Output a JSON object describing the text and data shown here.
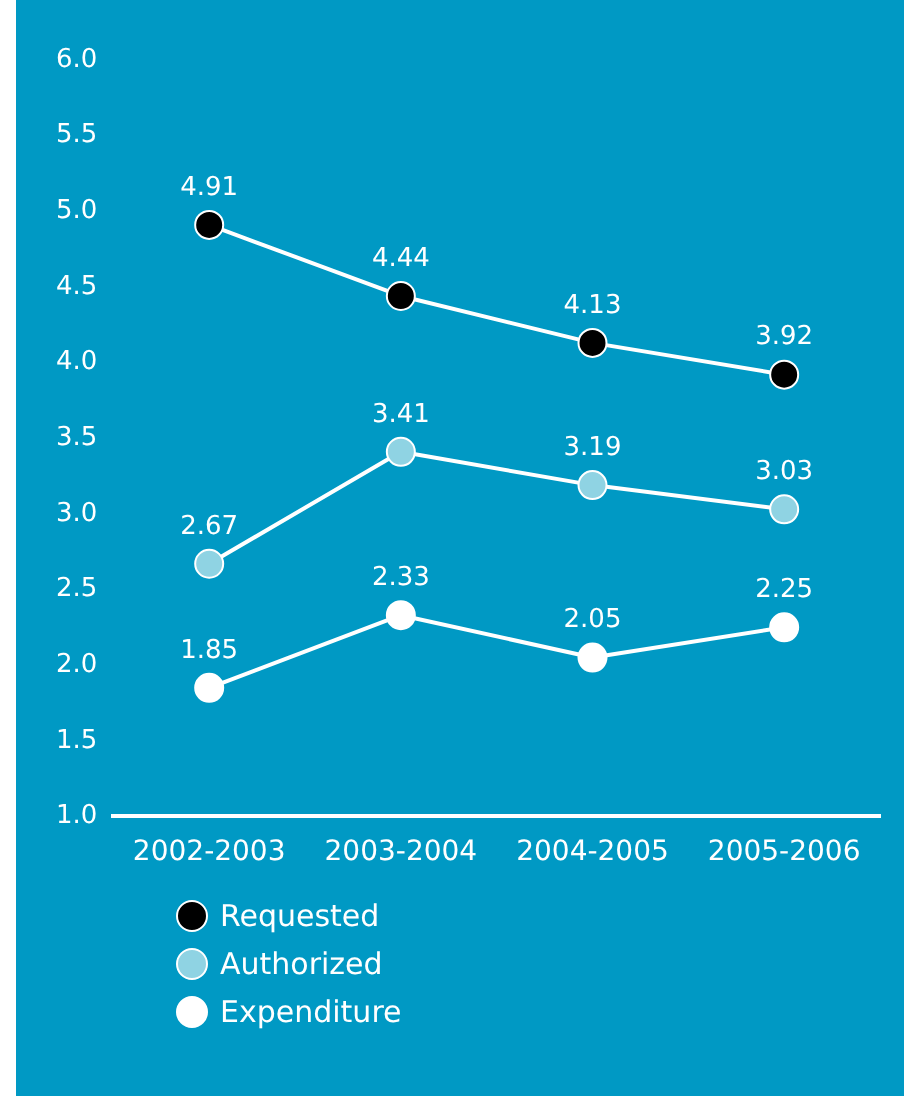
{
  "chart_data": {
    "type": "line",
    "categories": [
      "2002-2003",
      "2003-2004",
      "2004-2005",
      "2005-2006"
    ],
    "series": [
      {
        "name": "Requested",
        "color": "#000000",
        "values": [
          4.91,
          4.44,
          4.13,
          3.92
        ]
      },
      {
        "name": "Authorized",
        "color": "#8fd3e3",
        "values": [
          2.67,
          3.41,
          3.19,
          3.03
        ]
      },
      {
        "name": "Expenditure",
        "color": "#ffffff",
        "values": [
          1.85,
          2.33,
          2.05,
          2.25
        ]
      }
    ],
    "ylim": [
      1,
      6
    ],
    "yticks": [
      {
        "value": 1,
        "label": "1.0"
      },
      {
        "value": 1.5,
        "label": "1.5"
      },
      {
        "value": 2,
        "label": "2.0"
      },
      {
        "value": 2.5,
        "label": "2.5"
      },
      {
        "value": 3,
        "label": "3.0"
      },
      {
        "value": 3.5,
        "label": "3.5"
      },
      {
        "value": 4,
        "label": "4.0"
      },
      {
        "value": 4.5,
        "label": "4.5"
      },
      {
        "value": 5,
        "label": "5.0"
      },
      {
        "value": 5.5,
        "label": "5.5"
      },
      {
        "value": 6,
        "label": "6.0"
      }
    ],
    "grid": false,
    "legend": "bottom left",
    "marker": "circle",
    "line_style": "solid",
    "data_labels": true
  }
}
